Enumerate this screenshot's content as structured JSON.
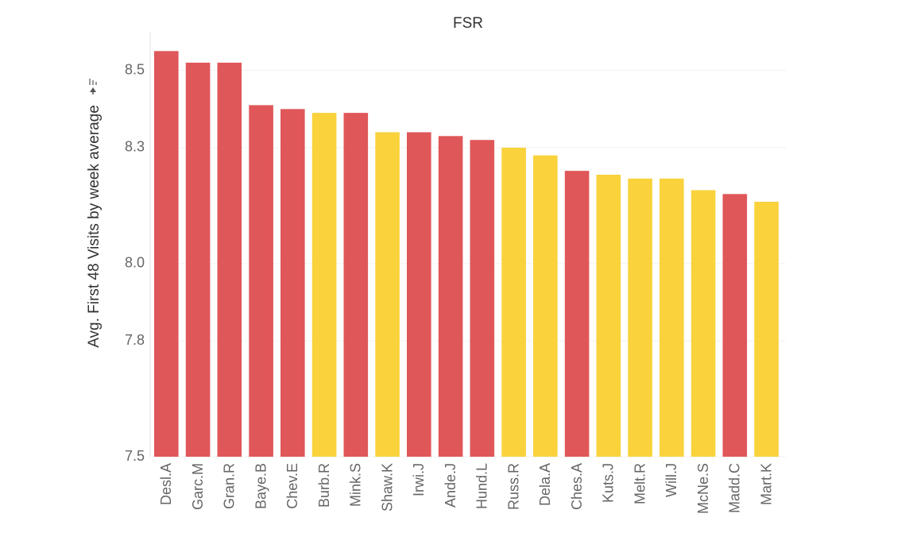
{
  "chart_data": {
    "type": "bar",
    "title": "FSR",
    "xlabel": "",
    "ylabel": "Avg. First 48 Visits by week average",
    "ylim": [
      7.5,
      8.6
    ],
    "yticks": [
      7.5,
      7.8,
      8.0,
      8.3,
      8.5
    ],
    "grid": true,
    "legend": "none",
    "categories": [
      "Desl.A",
      "Garc.M",
      "Gran.R",
      "Baye.B",
      "Chev.E",
      "Burb.R",
      "Mink.S",
      "Shaw.K",
      "Irwi.J",
      "Ande.J",
      "Hund.L",
      "Russ.R",
      "Dela.A",
      "Ches.A",
      "Kuts.J",
      "Melt.R",
      "Will.J",
      "McNe.S",
      "Madd.C",
      "Mart.K"
    ],
    "values": [
      8.55,
      8.52,
      8.52,
      8.41,
      8.4,
      8.39,
      8.39,
      8.34,
      8.34,
      8.33,
      8.32,
      8.3,
      8.28,
      8.24,
      8.23,
      8.22,
      8.22,
      8.19,
      8.18,
      8.16
    ],
    "bar_colors": [
      "#e05759",
      "#e05759",
      "#e05759",
      "#e05759",
      "#e05759",
      "#f9d23c",
      "#e05759",
      "#f9d23c",
      "#e05759",
      "#e05759",
      "#e05759",
      "#f9d23c",
      "#f9d23c",
      "#e05759",
      "#f9d23c",
      "#f9d23c",
      "#f9d23c",
      "#f9d23c",
      "#e05759",
      "#f9d23c"
    ]
  },
  "icons": {
    "ylabel_sort_icon": "pin-sort-icon"
  },
  "colors": {
    "red": "#e05759",
    "yellow": "#f9d23c"
  }
}
